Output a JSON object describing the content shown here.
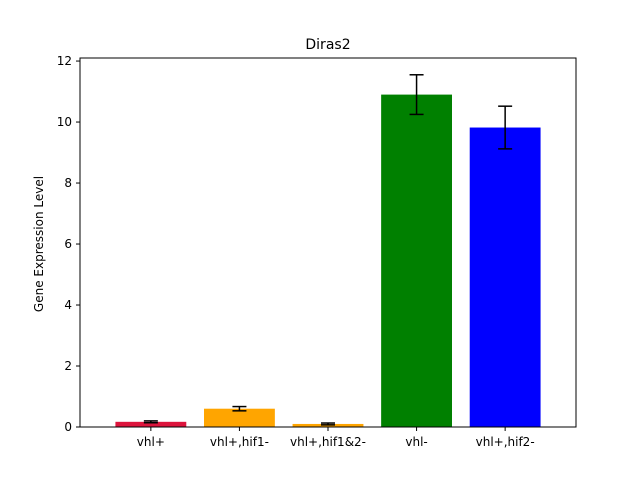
{
  "chart_data": {
    "type": "bar",
    "title": "Diras2",
    "xlabel": "",
    "ylabel": "Gene Expression Level",
    "ylim": [
      0,
      12.1
    ],
    "yticks": [
      0,
      2,
      4,
      6,
      8,
      10,
      12
    ],
    "grid": false,
    "categories": [
      "vhl+",
      "vhl+,hif1-",
      "vhl+,hif1&2-",
      "vhl-",
      "vhl+,hif2-"
    ],
    "values": [
      0.17,
      0.6,
      0.1,
      10.9,
      9.82
    ],
    "errors": [
      0.03,
      0.07,
      0.03,
      0.65,
      0.7
    ],
    "colors": [
      "#dc143c",
      "#ffa500",
      "#ffa500",
      "#008000",
      "#0000ff"
    ]
  }
}
